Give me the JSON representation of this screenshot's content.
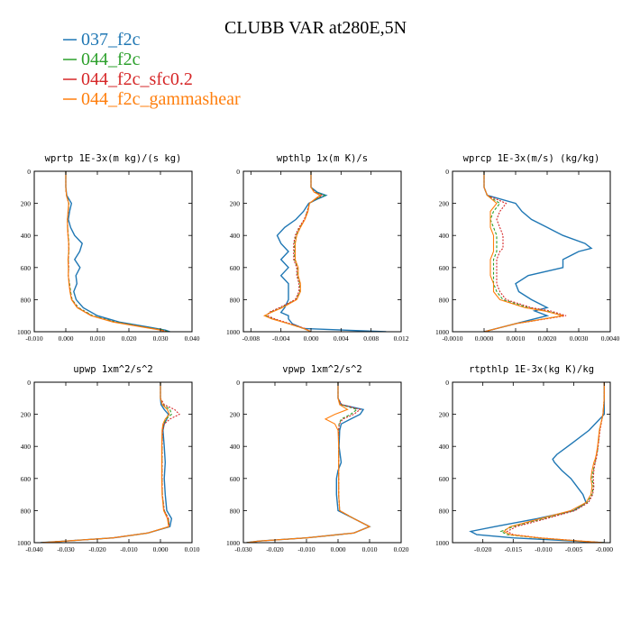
{
  "title": "CLUBB VAR at280E,5N",
  "legend": [
    {
      "label": "037_f2c",
      "color": "#1f77b4"
    },
    {
      "label": "044_f2c",
      "color": "#2ca02c"
    },
    {
      "label": "044_f2c_sfc0.2",
      "color": "#d62728"
    },
    {
      "label": "044_f2c_gammashear",
      "color": "#ff7f0e"
    }
  ],
  "chart_data": [
    {
      "type": "line",
      "title": "wprtp  1E-3x(m kg)/(s kg)",
      "xlim": [
        -0.01,
        0.04
      ],
      "ylim": [
        1000,
        0
      ],
      "xticks": [
        "-0.010",
        "0.000",
        "0.010",
        "0.020",
        "0.030",
        "0.040"
      ],
      "yticks": [
        "0",
        "200",
        "400",
        "600",
        "800",
        "1000"
      ],
      "y": [
        0,
        50,
        100,
        150,
        200,
        250,
        300,
        350,
        400,
        450,
        500,
        550,
        600,
        650,
        700,
        750,
        800,
        850,
        900,
        940,
        970,
        990,
        1000
      ],
      "series": [
        {
          "name": "037_f2c",
          "color": "#1f77b4",
          "values": [
            0,
            0,
            0,
            0.0003,
            0.0018,
            0.0012,
            0.0008,
            0.0015,
            0.0028,
            0.0052,
            0.0044,
            0.0028,
            0.0045,
            0.0032,
            0.0035,
            0.0025,
            0.0033,
            0.0055,
            0.01,
            0.017,
            0.026,
            0.0315,
            0.033
          ]
        },
        {
          "name": "044_f2c",
          "color": "#2ca02c",
          "values": [
            0,
            0,
            0,
            0.0002,
            0.001,
            0.0008,
            0.0005,
            0.0006,
            0.0008,
            0.001,
            0.001,
            0.0008,
            0.0009,
            0.0008,
            0.0012,
            0.0015,
            0.002,
            0.004,
            0.0085,
            0.016,
            0.025,
            0.031,
            0.0325
          ]
        },
        {
          "name": "044_f2c_sfc0.2",
          "color": "#d62728",
          "values": [
            0,
            0,
            0,
            0.0002,
            0.0009,
            0.0008,
            0.0005,
            0.0006,
            0.0007,
            0.0009,
            0.0009,
            0.0008,
            0.0009,
            0.0008,
            0.0011,
            0.0014,
            0.0019,
            0.0038,
            0.0082,
            0.0155,
            0.0245,
            0.0305,
            0.032
          ]
        },
        {
          "name": "044_f2c_gammashear",
          "color": "#ff7f0e",
          "values": [
            0,
            0,
            0,
            0.0002,
            0.0009,
            0.0007,
            0.0005,
            0.0005,
            0.0007,
            0.0009,
            0.0009,
            0.0007,
            0.0008,
            0.0008,
            0.001,
            0.0013,
            0.0018,
            0.0036,
            0.008,
            0.015,
            0.024,
            0.03,
            0.0315
          ]
        }
      ]
    },
    {
      "type": "line",
      "title": "wpthlp  1x(m K)/s",
      "xlim": [
        -0.009,
        0.012
      ],
      "ylim": [
        1000,
        0
      ],
      "xticks": [
        "-0.008",
        "-0.004",
        "0.000",
        "0.004",
        "0.008",
        "0.012"
      ],
      "yticks": [
        "0",
        "200",
        "400",
        "600",
        "800",
        "1000"
      ],
      "y": [
        0,
        50,
        100,
        130,
        150,
        170,
        200,
        250,
        300,
        350,
        400,
        450,
        500,
        550,
        600,
        650,
        700,
        750,
        800,
        850,
        880,
        900,
        920,
        950,
        980,
        1000
      ],
      "series": [
        {
          "name": "037_f2c",
          "color": "#1f77b4",
          "values": [
            0,
            0,
            0,
            0.0008,
            0.002,
            0.001,
            -0.0003,
            -0.001,
            -0.002,
            -0.0035,
            -0.0045,
            -0.004,
            -0.003,
            -0.004,
            -0.003,
            -0.004,
            -0.003,
            -0.003,
            -0.003,
            -0.0035,
            -0.004,
            -0.003,
            -0.003,
            -0.0025,
            -0.001,
            0.01
          ]
        },
        {
          "name": "044_f2c",
          "color": "#2ca02c",
          "values": [
            0,
            0,
            0,
            0.0005,
            0.0018,
            0.0008,
            -0.0002,
            -0.0005,
            -0.0008,
            -0.0015,
            -0.002,
            -0.0022,
            -0.0022,
            -0.0022,
            -0.0018,
            -0.0018,
            -0.0015,
            -0.0015,
            -0.002,
            -0.004,
            -0.0055,
            -0.006,
            -0.005,
            -0.003,
            -0.001,
            0.0
          ]
        },
        {
          "name": "044_f2c_sfc0.2",
          "color": "#d62728",
          "values": [
            0,
            0,
            0,
            0.0005,
            0.0015,
            0.0007,
            -0.0002,
            -0.0005,
            -0.0009,
            -0.0016,
            -0.0021,
            -0.0023,
            -0.0023,
            -0.0023,
            -0.0019,
            -0.0019,
            -0.0016,
            -0.0016,
            -0.0021,
            -0.0042,
            -0.0056,
            -0.0058,
            -0.0048,
            -0.0028,
            -0.0008,
            0.0
          ]
        },
        {
          "name": "044_f2c_gammashear",
          "color": "#ff7f0e",
          "values": [
            0,
            0,
            0,
            0.0004,
            0.0012,
            0.0006,
            -0.0002,
            -0.0004,
            -0.0008,
            -0.0014,
            -0.0019,
            -0.0021,
            -0.0021,
            -0.0021,
            -0.0017,
            -0.0017,
            -0.0014,
            -0.0014,
            -0.0019,
            -0.0038,
            -0.0053,
            -0.0062,
            -0.0052,
            -0.003,
            -0.001,
            0.0
          ]
        }
      ]
    },
    {
      "type": "line",
      "title": "wprcp  1E-3x(m/s) (kg/kg)",
      "xlim": [
        -0.001,
        0.004
      ],
      "ylim": [
        1000,
        0
      ],
      "xticks": [
        "-0.0010",
        "0.0000",
        "0.0010",
        "0.0020",
        "0.0030",
        "0.0040"
      ],
      "yticks": [
        "0",
        "200",
        "400",
        "600",
        "800",
        "1000"
      ],
      "y": [
        0,
        50,
        100,
        150,
        200,
        250,
        300,
        350,
        400,
        450,
        480,
        500,
        550,
        600,
        650,
        700,
        750,
        800,
        850,
        870,
        900,
        950,
        1000
      ],
      "series": [
        {
          "name": "037_f2c",
          "color": "#1f77b4",
          "values": [
            0,
            0,
            0,
            0.0001,
            0.001,
            0.0012,
            0.0015,
            0.002,
            0.0025,
            0.0032,
            0.0034,
            0.003,
            0.0025,
            0.0025,
            0.0014,
            0.001,
            0.0011,
            0.0015,
            0.002,
            0.0016,
            0.002,
            0.001,
            0.0
          ]
        },
        {
          "name": "044_f2c",
          "color": "#2ca02c",
          "values": [
            0,
            0,
            0,
            0.0001,
            0.0005,
            0.0003,
            0.0002,
            0.0003,
            0.0004,
            0.0004,
            0.0004,
            0.0004,
            0.0003,
            0.0003,
            0.0003,
            0.0003,
            0.0004,
            0.0006,
            0.0014,
            0.002,
            0.0025,
            0.001,
            0.0
          ]
        },
        {
          "name": "044_f2c_sfc0.2",
          "color": "#d62728",
          "values": [
            0,
            0,
            0,
            0.0001,
            0.0007,
            0.0005,
            0.0004,
            0.0005,
            0.0006,
            0.0006,
            0.0006,
            0.0005,
            0.0004,
            0.0004,
            0.0004,
            0.0004,
            0.0005,
            0.0007,
            0.0015,
            0.0021,
            0.0026,
            0.001,
            0.0
          ]
        },
        {
          "name": "044_f2c_gammashear",
          "color": "#ff7f0e",
          "values": [
            0,
            0,
            0,
            0.0001,
            0.0004,
            0.0002,
            0.0002,
            0.0002,
            0.0003,
            0.0003,
            0.0003,
            0.0003,
            0.0002,
            0.0002,
            0.0002,
            0.0003,
            0.0003,
            0.0005,
            0.0013,
            0.0019,
            0.0025,
            0.001,
            0.0
          ]
        }
      ]
    },
    {
      "type": "line",
      "title": "upwp  1xm^2/s^2",
      "xlim": [
        -0.04,
        0.01
      ],
      "ylim": [
        1000,
        0
      ],
      "xticks": [
        "-0.040",
        "-0.030",
        "-0.020",
        "-0.010",
        "0.000",
        "0.010"
      ],
      "yticks": [
        "0",
        "200",
        "400",
        "600",
        "800",
        "1000"
      ],
      "y": [
        0,
        50,
        100,
        140,
        170,
        200,
        230,
        260,
        300,
        400,
        500,
        600,
        700,
        800,
        850,
        900,
        940,
        970,
        990,
        1000
      ],
      "series": [
        {
          "name": "037_f2c",
          "color": "#1f77b4",
          "values": [
            0,
            0,
            0,
            0.0002,
            0.0012,
            0.0025,
            0.002,
            0.0012,
            0.0008,
            0.0012,
            0.0015,
            0.0012,
            0.0015,
            0.002,
            0.0035,
            0.003,
            -0.004,
            -0.015,
            -0.03,
            -0.038
          ]
        },
        {
          "name": "044_f2c",
          "color": "#2ca02c",
          "values": [
            0,
            0,
            0,
            0.0008,
            0.003,
            0.0035,
            0.0018,
            0.001,
            0.0006,
            0.0005,
            0.0005,
            0.0005,
            0.0006,
            0.0012,
            0.0025,
            0.0028,
            -0.004,
            -0.015,
            -0.03,
            -0.038
          ]
        },
        {
          "name": "044_f2c_sfc0.2",
          "color": "#d62728",
          "values": [
            0,
            0,
            0,
            0.0012,
            0.0045,
            0.006,
            0.003,
            0.0012,
            0.0007,
            0.0005,
            0.0005,
            0.0005,
            0.0006,
            0.0012,
            0.0025,
            0.0028,
            -0.004,
            -0.015,
            -0.03,
            -0.038
          ]
        },
        {
          "name": "044_f2c_gammashear",
          "color": "#ff7f0e",
          "values": [
            0,
            0,
            0,
            0.0006,
            0.0022,
            0.0028,
            0.0015,
            0.0008,
            0.0005,
            0.0004,
            0.0004,
            0.0004,
            0.0005,
            0.001,
            0.0022,
            0.0026,
            -0.004,
            -0.015,
            -0.03,
            -0.038
          ]
        }
      ]
    },
    {
      "type": "line",
      "title": "vpwp  1xm^2/s^2",
      "xlim": [
        -0.03,
        0.02
      ],
      "ylim": [
        1000,
        0
      ],
      "xticks": [
        "-0.030",
        "-0.020",
        "-0.010",
        "0.000",
        "0.010",
        "0.020"
      ],
      "yticks": [
        "0",
        "200",
        "400",
        "600",
        "800",
        "1000"
      ],
      "y": [
        0,
        50,
        100,
        140,
        170,
        200,
        230,
        260,
        300,
        400,
        500,
        550,
        600,
        700,
        800,
        850,
        900,
        940,
        970,
        990,
        1000
      ],
      "series": [
        {
          "name": "037_f2c",
          "color": "#1f77b4",
          "values": [
            0,
            0,
            0,
            0.001,
            0.008,
            0.007,
            0.004,
            0.001,
            0.0005,
            0.0003,
            0.001,
            0.0,
            -0.0005,
            -0.0005,
            0.0,
            0.005,
            0.01,
            0.005,
            -0.01,
            -0.025,
            -0.029
          ]
        },
        {
          "name": "044_f2c",
          "color": "#2ca02c",
          "values": [
            0,
            0,
            0,
            0.001,
            0.006,
            0.004,
            0.001,
            0.0003,
            0.0002,
            0.0002,
            0.0002,
            0.0002,
            0.0002,
            0.0002,
            0.0005,
            0.005,
            0.01,
            0.005,
            -0.01,
            -0.025,
            -0.029
          ]
        },
        {
          "name": "044_f2c_sfc0.2",
          "color": "#d62728",
          "values": [
            0,
            0,
            0,
            0.0012,
            0.007,
            0.005,
            0.0015,
            0.0004,
            0.0002,
            0.0002,
            0.0002,
            0.0002,
            0.0002,
            0.0002,
            0.0005,
            0.005,
            0.01,
            0.005,
            -0.01,
            -0.025,
            -0.029
          ]
        },
        {
          "name": "044_f2c_gammashear",
          "color": "#ff7f0e",
          "values": [
            0,
            0,
            0,
            0.0005,
            0.003,
            -0.001,
            -0.004,
            -0.001,
            0.0,
            0.0002,
            0.0002,
            0.0002,
            0.0002,
            0.0002,
            0.0005,
            0.005,
            0.01,
            0.005,
            -0.01,
            -0.025,
            -0.029
          ]
        }
      ]
    },
    {
      "type": "line",
      "title": "rtpthlp  1E-3x(kg K)/kg",
      "xlim": [
        -0.025,
        0.001
      ],
      "ylim": [
        1000,
        0
      ],
      "xticks": [
        "-0.020",
        "-0.015",
        "-0.010",
        "-0.005",
        "-0.000"
      ],
      "yticks": [
        "0",
        "200",
        "400",
        "600",
        "800",
        "1000"
      ],
      "y": [
        0,
        100,
        200,
        300,
        400,
        450,
        480,
        500,
        550,
        600,
        650,
        700,
        750,
        800,
        850,
        900,
        930,
        950,
        970,
        990,
        1000
      ],
      "series": [
        {
          "name": "037_f2c",
          "color": "#1f77b4",
          "values": [
            0,
            0,
            0,
            -0.0025,
            -0.006,
            -0.0078,
            -0.0085,
            -0.0082,
            -0.007,
            -0.0055,
            -0.0045,
            -0.0035,
            -0.003,
            -0.005,
            -0.011,
            -0.018,
            -0.022,
            -0.021,
            -0.015,
            -0.005,
            0
          ]
        },
        {
          "name": "044_f2c",
          "color": "#2ca02c",
          "values": [
            0,
            0,
            -0.0002,
            -0.0008,
            -0.001,
            -0.0012,
            -0.0014,
            -0.0015,
            -0.0018,
            -0.002,
            -0.0018,
            -0.002,
            -0.0028,
            -0.005,
            -0.01,
            -0.015,
            -0.017,
            -0.016,
            -0.011,
            -0.004,
            0
          ]
        },
        {
          "name": "044_f2c_sfc0.2",
          "color": "#d62728",
          "values": [
            0,
            0,
            -0.0002,
            -0.0007,
            -0.001,
            -0.0012,
            -0.0013,
            -0.0015,
            -0.0017,
            -0.0018,
            -0.0017,
            -0.0019,
            -0.0026,
            -0.0048,
            -0.0095,
            -0.0145,
            -0.016,
            -0.015,
            -0.0105,
            -0.0038,
            0
          ]
        },
        {
          "name": "044_f2c_gammashear",
          "color": "#ff7f0e",
          "values": [
            0,
            0,
            -0.0002,
            -0.0008,
            -0.0011,
            -0.0013,
            -0.0015,
            -0.0017,
            -0.002,
            -0.0022,
            -0.002,
            -0.0022,
            -0.003,
            -0.0055,
            -0.0105,
            -0.0155,
            -0.0165,
            -0.0155,
            -0.0108,
            -0.004,
            0
          ]
        }
      ]
    }
  ]
}
